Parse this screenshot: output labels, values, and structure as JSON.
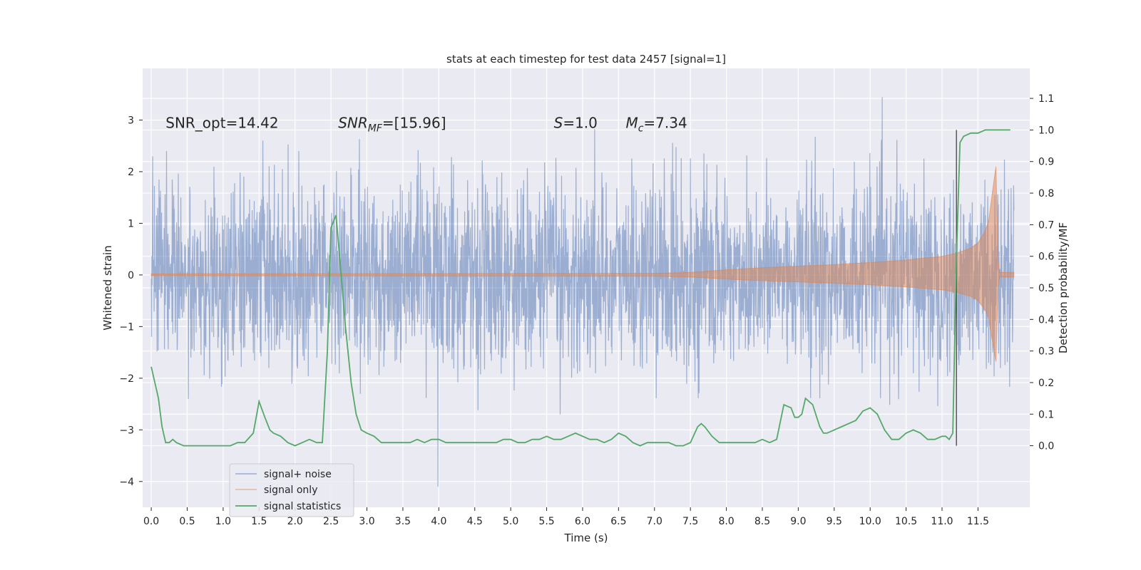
{
  "chart_data": {
    "type": "line",
    "title": "stats at each timestep for test data 2457 [signal=1]",
    "xlabel": "Time (s)",
    "ylabel": "Whitened strain",
    "y2label": "Detection probability/MF",
    "xlim": [
      -0.12,
      12.22
    ],
    "ylim": [
      -4.5,
      4.0
    ],
    "y2lim": [
      -0.195,
      1.195
    ],
    "x_ticks": [
      0.0,
      0.5,
      1.0,
      1.5,
      2.0,
      2.5,
      3.0,
      3.5,
      4.0,
      4.5,
      5.0,
      5.5,
      6.0,
      6.5,
      7.0,
      7.5,
      8.0,
      8.5,
      9.0,
      9.5,
      10.0,
      10.5,
      11.0,
      11.5
    ],
    "x_tick_labels": [
      "0.0",
      "0.5",
      "1.0",
      "1.5",
      "2.0",
      "2.5",
      "3.0",
      "3.5",
      "4.0",
      "4.5",
      "5.0",
      "5.5",
      "6.0",
      "6.5",
      "7.0",
      "7.5",
      "8.0",
      "8.5",
      "9.0",
      "9.5",
      "10.0",
      "10.5",
      "11.0",
      "11.5"
    ],
    "y_ticks": [
      -4,
      -3,
      -2,
      -1,
      0,
      1,
      2,
      3
    ],
    "y_tick_labels": [
      "−4",
      "−3",
      "−2",
      "−1",
      "0",
      "1",
      "2",
      "3"
    ],
    "y2_ticks": [
      0.0,
      0.1,
      0.2,
      0.3,
      0.4,
      0.5,
      0.6,
      0.7,
      0.8,
      0.9,
      1.0,
      1.1
    ],
    "y2_tick_labels": [
      "0.0",
      "0.1",
      "0.2",
      "0.3",
      "0.4",
      "0.5",
      "0.6",
      "0.7",
      "0.8",
      "0.9",
      "1.0",
      "1.1"
    ],
    "grid": true,
    "legend_position": "bottom-left",
    "series": [
      {
        "name": "signal+ noise",
        "color": "#4c72b0",
        "axis": "left",
        "style": "noise band",
        "x_range": [
          0.0,
          12.0
        ],
        "typical_range": [
          -1.4,
          1.4
        ],
        "observed_max": 3.6,
        "observed_min": -4.1
      },
      {
        "name": "signal only",
        "color": "#dd8452",
        "axis": "left",
        "style": "chirp envelope",
        "envelope_x": [
          0.0,
          7.0,
          7.5,
          8.0,
          8.5,
          9.0,
          9.5,
          10.0,
          10.5,
          11.0,
          11.2,
          11.4,
          11.5,
          11.6,
          11.65,
          11.7,
          11.75,
          11.78,
          11.8,
          12.0
        ],
        "envelope_amp": [
          0.02,
          0.03,
          0.05,
          0.1,
          0.14,
          0.17,
          0.2,
          0.24,
          0.29,
          0.36,
          0.42,
          0.52,
          0.62,
          0.85,
          1.05,
          1.6,
          2.1,
          0.3,
          0.05,
          0.05
        ]
      },
      {
        "name": "signal statistics",
        "color": "#55a868",
        "axis": "right",
        "x": [
          0.0,
          0.1,
          0.15,
          0.2,
          0.25,
          0.3,
          0.35,
          0.45,
          0.55,
          0.7,
          0.85,
          1.0,
          1.1,
          1.2,
          1.3,
          1.42,
          1.5,
          1.58,
          1.65,
          1.7,
          1.8,
          1.9,
          2.0,
          2.1,
          2.2,
          2.3,
          2.38,
          2.45,
          2.5,
          2.57,
          2.62,
          2.7,
          2.78,
          2.85,
          2.92,
          3.0,
          3.1,
          3.2,
          3.3,
          3.4,
          3.5,
          3.6,
          3.7,
          3.8,
          3.9,
          4.0,
          4.1,
          4.2,
          4.3,
          4.4,
          4.5,
          4.6,
          4.7,
          4.8,
          4.9,
          5.0,
          5.1,
          5.2,
          5.3,
          5.4,
          5.5,
          5.6,
          5.7,
          5.8,
          5.9,
          6.0,
          6.1,
          6.2,
          6.3,
          6.4,
          6.5,
          6.6,
          6.7,
          6.8,
          6.9,
          7.0,
          7.1,
          7.2,
          7.3,
          7.4,
          7.5,
          7.6,
          7.65,
          7.7,
          7.8,
          7.9,
          8.0,
          8.1,
          8.2,
          8.3,
          8.4,
          8.5,
          8.6,
          8.7,
          8.8,
          8.9,
          8.95,
          9.0,
          9.05,
          9.1,
          9.2,
          9.3,
          9.35,
          9.4,
          9.5,
          9.6,
          9.7,
          9.8,
          9.9,
          10.0,
          10.05,
          10.1,
          10.2,
          10.3,
          10.4,
          10.5,
          10.6,
          10.7,
          10.8,
          10.9,
          11.0,
          11.05,
          11.1,
          11.15,
          11.2,
          11.25,
          11.3,
          11.4,
          11.5,
          11.6,
          11.7,
          11.8,
          11.9,
          11.95
        ],
        "y": [
          0.25,
          0.15,
          0.06,
          0.01,
          0.01,
          0.02,
          0.01,
          0.0,
          0.0,
          0.0,
          0.0,
          0.0,
          0.0,
          0.01,
          0.01,
          0.04,
          0.14,
          0.09,
          0.05,
          0.04,
          0.03,
          0.01,
          0.0,
          0.01,
          0.02,
          0.01,
          0.01,
          0.3,
          0.69,
          0.73,
          0.6,
          0.38,
          0.2,
          0.1,
          0.05,
          0.04,
          0.03,
          0.01,
          0.01,
          0.01,
          0.01,
          0.01,
          0.02,
          0.01,
          0.02,
          0.02,
          0.01,
          0.01,
          0.01,
          0.01,
          0.01,
          0.01,
          0.01,
          0.01,
          0.02,
          0.02,
          0.01,
          0.01,
          0.02,
          0.02,
          0.03,
          0.02,
          0.02,
          0.03,
          0.04,
          0.03,
          0.02,
          0.02,
          0.01,
          0.02,
          0.04,
          0.03,
          0.01,
          0.0,
          0.01,
          0.01,
          0.01,
          0.01,
          0.0,
          0.0,
          0.01,
          0.06,
          0.07,
          0.06,
          0.03,
          0.01,
          0.01,
          0.01,
          0.01,
          0.01,
          0.01,
          0.02,
          0.01,
          0.02,
          0.13,
          0.12,
          0.09,
          0.09,
          0.1,
          0.15,
          0.13,
          0.06,
          0.04,
          0.04,
          0.05,
          0.06,
          0.07,
          0.08,
          0.11,
          0.12,
          0.11,
          0.1,
          0.05,
          0.02,
          0.02,
          0.04,
          0.05,
          0.04,
          0.02,
          0.02,
          0.03,
          0.03,
          0.02,
          0.04,
          0.6,
          0.96,
          0.98,
          0.99,
          0.99,
          1.0,
          1.0,
          1.0,
          1.0,
          1.0
        ]
      }
    ],
    "vline_x": 11.2,
    "vline_range_right_axis": [
      0.0,
      1.0
    ],
    "annotations": [
      {
        "text": "SNR_opt=14.42",
        "x": 0.2,
        "y": 2.85
      },
      {
        "text": "SNR",
        "sub": "MF",
        "suffix": "=[15.96]",
        "x": 2.6,
        "y": 2.85
      },
      {
        "text": "S",
        "suffix": "=1.0",
        "x": 5.6,
        "y": 2.85
      },
      {
        "text": "M",
        "sub": "c",
        "suffix": "=7.34",
        "x": 6.6,
        "y": 2.85
      }
    ]
  }
}
